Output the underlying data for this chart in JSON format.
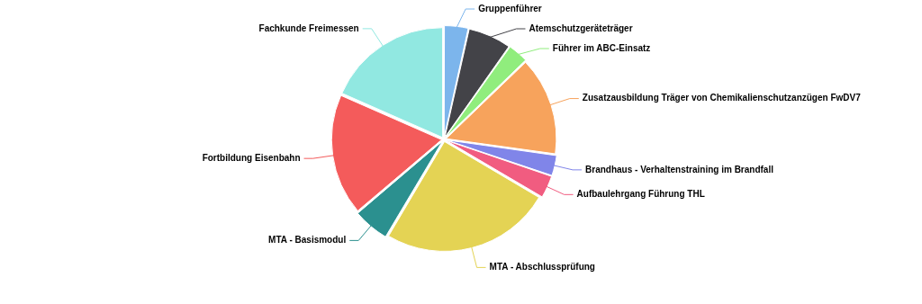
{
  "chart_data": {
    "type": "pie",
    "categories": [
      "Gruppenführer",
      "Atemschutzgeräteträger",
      "Führer im ABC-Einsatz",
      "Zusatzausbildung Träger von Chemikalienschutzanzügen FwDV7",
      "Brandhaus - Verhaltenstraining im Brandfall",
      "Aufbaulehrgang Führung THL",
      "MTA - Abschlussprüfung",
      "MTA - Basismodul",
      "Fortbildung Eisenbahn",
      "Fachkunde Freimessen"
    ],
    "values": [
      3.5,
      6.3,
      3,
      14.4,
      3,
      3.3,
      25,
      5.3,
      17.8,
      18.4
    ],
    "colors": [
      "#7cb5ec",
      "#434348",
      "#90ed7d",
      "#f7a35c",
      "#8085e9",
      "#f15c80",
      "#e4d354",
      "#2b908f",
      "#f45b5b",
      "#91e8e1"
    ],
    "legend": false
  }
}
